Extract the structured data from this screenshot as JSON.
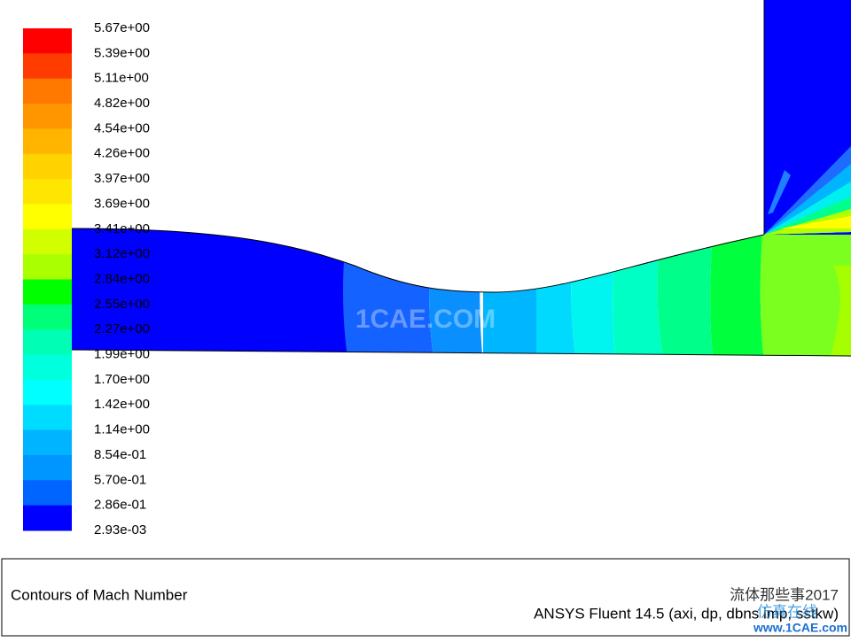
{
  "legend": {
    "labels": [
      "5.67e+00",
      "5.39e+00",
      "5.11e+00",
      "4.82e+00",
      "4.54e+00",
      "4.26e+00",
      "3.97e+00",
      "3.69e+00",
      "3.41e+00",
      "3.12e+00",
      "2.84e+00",
      "2.55e+00",
      "2.27e+00",
      "1.99e+00",
      "1.70e+00",
      "1.42e+00",
      "1.14e+00",
      "8.54e-01",
      "5.70e-01",
      "2.86e-01",
      "2.93e-03"
    ]
  },
  "footer": {
    "title": "Contours of Mach Number",
    "info": "ANSYS Fluent 14.5 (axi, dp, dbns imp, sstkw)"
  },
  "watermarks": {
    "center": "1CAE.COM",
    "account": "流体那些事2017",
    "site": "仿真在线",
    "url": "www.1CAE.com"
  }
}
